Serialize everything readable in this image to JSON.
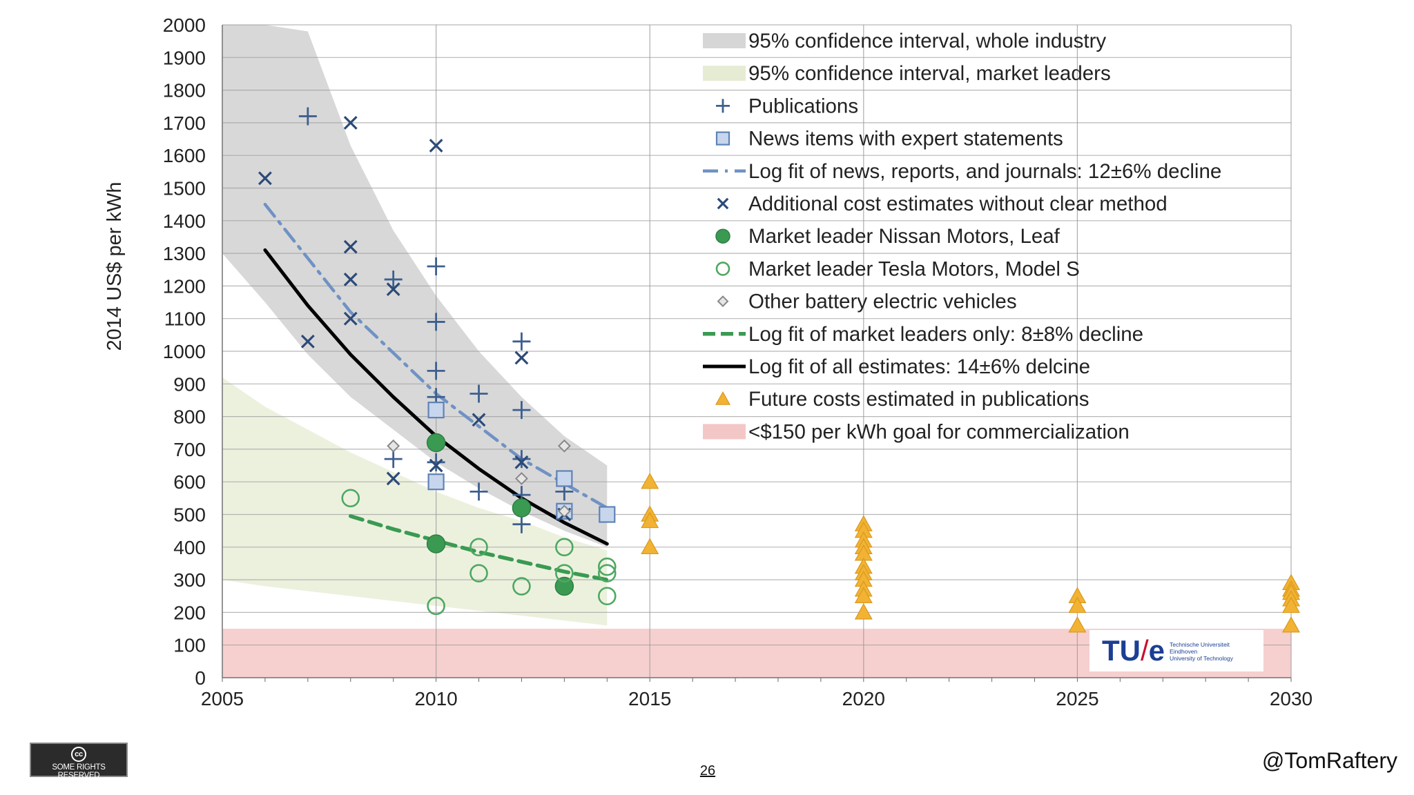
{
  "chart_data": {
    "type": "scatter",
    "title": "",
    "ylabel": "2014 US$ per kWh",
    "xlabel": "",
    "xlim": [
      2005,
      2030
    ],
    "ylim": [
      0,
      2000
    ],
    "x_ticks": [
      2005,
      2010,
      2015,
      2020,
      2025,
      2030
    ],
    "y_ticks": [
      0,
      100,
      200,
      300,
      400,
      500,
      600,
      700,
      800,
      900,
      1000,
      1100,
      1200,
      1300,
      1400,
      1500,
      1600,
      1700,
      1800,
      1900,
      2000
    ],
    "legend_position": "top-right",
    "legend": [
      {
        "key": "ci_industry",
        "label": "95% confidence interval, whole industry",
        "color": "#d6d6d6"
      },
      {
        "key": "ci_leaders",
        "label": "95% confidence interval, market leaders",
        "color": "#e6ecd3"
      },
      {
        "key": "publications",
        "label": "Publications",
        "color": "#3d5f8f"
      },
      {
        "key": "news",
        "label": "News items with expert statements",
        "color": "#5f82b6"
      },
      {
        "key": "logfit_news",
        "label": "Log fit of news, reports, and journals: 12±6% decline",
        "color": "#6f92c4"
      },
      {
        "key": "additional",
        "label": "Additional cost estimates without clear method",
        "color": "#2c4a78"
      },
      {
        "key": "nissan",
        "label": "Market leader Nissan Motors, Leaf",
        "color": "#3a9a52"
      },
      {
        "key": "tesla",
        "label": "Market leader Tesla Motors, Model S",
        "color": "#4ea861"
      },
      {
        "key": "other_bev",
        "label": "Other battery electric vehicles",
        "color": "#888888"
      },
      {
        "key": "logfit_leaders",
        "label": "Log fit of market leaders only: 8±8% decline",
        "color": "#3a9a52"
      },
      {
        "key": "logfit_all",
        "label": "Log fit of all estimates: 14±6% delcine",
        "color": "#000000"
      },
      {
        "key": "future",
        "label": "Future costs estimated in publications",
        "color": "#f2b233"
      },
      {
        "key": "goal",
        "label": "<$150 per kWh goal for commercialization",
        "color": "#f4c7c7"
      }
    ],
    "goal_band": [
      0,
      150
    ],
    "ci_industry": {
      "x": [
        2005,
        2006,
        2007,
        2008,
        2009,
        2010,
        2011,
        2012,
        2013,
        2014
      ],
      "upper": [
        2000,
        2000,
        1980,
        1630,
        1370,
        1170,
        1000,
        860,
        740,
        650
      ],
      "lower": [
        1300,
        1150,
        990,
        860,
        760,
        660,
        580,
        510,
        450,
        400
      ]
    },
    "ci_leaders": {
      "x": [
        2005,
        2006,
        2007,
        2008,
        2009,
        2010,
        2011,
        2012,
        2013,
        2014
      ],
      "upper": [
        920,
        830,
        760,
        690,
        630,
        570,
        520,
        480,
        430,
        390
      ],
      "lower": [
        300,
        280,
        265,
        250,
        235,
        220,
        205,
        190,
        175,
        160
      ]
    },
    "series": [
      {
        "name": "Publications",
        "marker": "plus",
        "points": [
          [
            2007,
            1720
          ],
          [
            2009,
            1220
          ],
          [
            2009,
            670
          ],
          [
            2010,
            1260
          ],
          [
            2010,
            1090
          ],
          [
            2010,
            940
          ],
          [
            2010,
            860
          ],
          [
            2010,
            660
          ],
          [
            2011,
            870
          ],
          [
            2011,
            570
          ],
          [
            2012,
            1030
          ],
          [
            2012,
            820
          ],
          [
            2012,
            670
          ],
          [
            2012,
            560
          ],
          [
            2012,
            470
          ],
          [
            2013,
            570
          ]
        ]
      },
      {
        "name": "News items with expert statements",
        "marker": "square",
        "points": [
          [
            2010,
            820
          ],
          [
            2010,
            600
          ],
          [
            2013,
            610
          ],
          [
            2013,
            510
          ],
          [
            2014,
            500
          ]
        ]
      },
      {
        "name": "Additional cost estimates without clear method",
        "marker": "x",
        "points": [
          [
            2006,
            1530
          ],
          [
            2007,
            1030
          ],
          [
            2008,
            1700
          ],
          [
            2008,
            1320
          ],
          [
            2008,
            1220
          ],
          [
            2008,
            1100
          ],
          [
            2009,
            1190
          ],
          [
            2009,
            610
          ],
          [
            2010,
            1630
          ],
          [
            2010,
            650
          ],
          [
            2011,
            790
          ],
          [
            2012,
            980
          ],
          [
            2012,
            660
          ],
          [
            2013,
            500
          ]
        ]
      },
      {
        "name": "Market leader Nissan Motors, Leaf",
        "marker": "filled-circle",
        "points": [
          [
            2010,
            720
          ],
          [
            2010,
            410
          ],
          [
            2012,
            520
          ],
          [
            2013,
            280
          ]
        ]
      },
      {
        "name": "Market leader Tesla Motors, Model S",
        "marker": "open-circle",
        "points": [
          [
            2008,
            550
          ],
          [
            2010,
            220
          ],
          [
            2011,
            400
          ],
          [
            2011,
            320
          ],
          [
            2012,
            280
          ],
          [
            2013,
            400
          ],
          [
            2013,
            320
          ],
          [
            2014,
            340
          ],
          [
            2014,
            320
          ],
          [
            2014,
            250
          ]
        ]
      },
      {
        "name": "Other battery electric vehicles",
        "marker": "diamond",
        "points": [
          [
            2009,
            710
          ],
          [
            2012,
            610
          ],
          [
            2013,
            710
          ],
          [
            2013,
            510
          ]
        ]
      },
      {
        "name": "Future costs estimated in publications",
        "marker": "triangle",
        "points": [
          [
            2015,
            600
          ],
          [
            2015,
            500
          ],
          [
            2015,
            480
          ],
          [
            2015,
            400
          ],
          [
            2020,
            470
          ],
          [
            2020,
            450
          ],
          [
            2020,
            420
          ],
          [
            2020,
            400
          ],
          [
            2020,
            380
          ],
          [
            2020,
            340
          ],
          [
            2020,
            320
          ],
          [
            2020,
            300
          ],
          [
            2020,
            270
          ],
          [
            2020,
            250
          ],
          [
            2020,
            200
          ],
          [
            2025,
            250
          ],
          [
            2025,
            220
          ],
          [
            2025,
            160
          ],
          [
            2030,
            290
          ],
          [
            2030,
            270
          ],
          [
            2030,
            260
          ],
          [
            2030,
            240
          ],
          [
            2030,
            220
          ],
          [
            2030,
            160
          ]
        ]
      }
    ],
    "fit_lines": [
      {
        "name": "Log fit of news, reports, and journals: 12±6% decline",
        "style": "dash-dot",
        "x": [
          2006,
          2008,
          2010,
          2012,
          2014
        ],
        "y": [
          1450,
          1120,
          870,
          670,
          520
        ]
      },
      {
        "name": "Log fit of all estimates: 14±6% delcine",
        "style": "solid",
        "x": [
          2006,
          2007,
          2008,
          2009,
          2010,
          2011,
          2012,
          2013,
          2014
        ],
        "y": [
          1310,
          1140,
          990,
          860,
          740,
          640,
          550,
          475,
          410
        ]
      },
      {
        "name": "Log fit of market leaders only: 8±8% decline",
        "style": "dash",
        "x": [
          2008,
          2009,
          2010,
          2011,
          2012,
          2013,
          2014
        ],
        "y": [
          495,
          455,
          420,
          385,
          355,
          325,
          300
        ]
      }
    ]
  },
  "footer": {
    "page_number": "26",
    "handle": "@TomRaftery",
    "cc_text": "SOME RIGHTS RESERVED",
    "cc_symbol": "cc"
  },
  "logo": {
    "mark_left": "TU",
    "mark_slash": "/",
    "mark_right": "e",
    "line1": "Technische Universiteit",
    "line2": "Eindhoven",
    "line3": "University of Technology"
  }
}
